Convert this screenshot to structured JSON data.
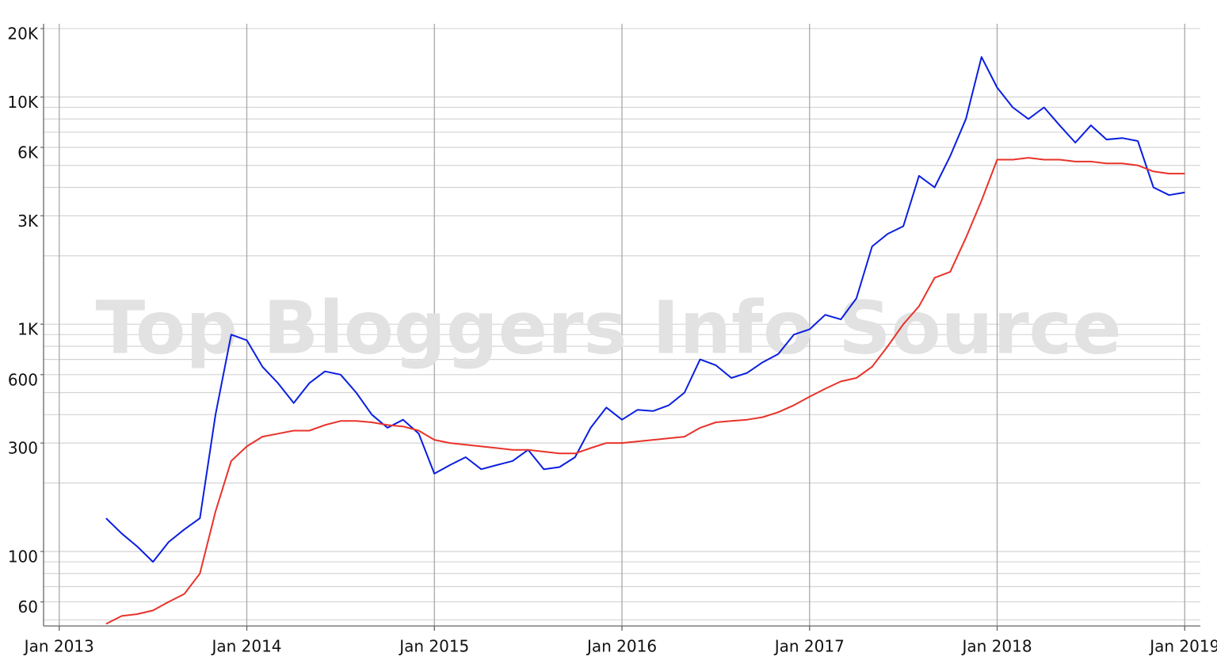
{
  "chart_data": {
    "type": "line",
    "watermark": "Top Bloggers Info Source",
    "log_scale_y": true,
    "grid": true,
    "x": [
      "2013-04",
      "2013-05",
      "2013-06",
      "2013-07",
      "2013-08",
      "2013-09",
      "2013-10",
      "2013-11",
      "2013-12",
      "2014-01",
      "2014-02",
      "2014-03",
      "2014-04",
      "2014-05",
      "2014-06",
      "2014-07",
      "2014-08",
      "2014-09",
      "2014-10",
      "2014-11",
      "2014-12",
      "2015-01",
      "2015-02",
      "2015-03",
      "2015-04",
      "2015-05",
      "2015-06",
      "2015-07",
      "2015-08",
      "2015-09",
      "2015-10",
      "2015-11",
      "2015-12",
      "2016-01",
      "2016-02",
      "2016-03",
      "2016-04",
      "2016-05",
      "2016-06",
      "2016-07",
      "2016-08",
      "2016-09",
      "2016-10",
      "2016-11",
      "2016-12",
      "2017-01",
      "2017-02",
      "2017-03",
      "2017-04",
      "2017-05",
      "2017-06",
      "2017-07",
      "2017-08",
      "2017-09",
      "2017-10",
      "2017-11",
      "2017-12",
      "2018-01",
      "2018-02",
      "2018-03",
      "2018-04",
      "2018-05",
      "2018-06",
      "2018-07",
      "2018-08",
      "2018-09",
      "2018-10",
      "2018-11",
      "2018-12",
      "2019-01"
    ],
    "series": [
      {
        "color": "#0a1fe0",
        "values": [
          140,
          120,
          105,
          90,
          110,
          125,
          140,
          400,
          900,
          850,
          650,
          550,
          450,
          550,
          620,
          600,
          500,
          400,
          350,
          380,
          330,
          220,
          240,
          260,
          230,
          240,
          250,
          280,
          230,
          235,
          260,
          350,
          430,
          380,
          420,
          415,
          440,
          500,
          700,
          660,
          580,
          610,
          680,
          740,
          900,
          950,
          1100,
          1050,
          1300,
          2200,
          2500,
          2700,
          4500,
          4000,
          5500,
          8000,
          15000,
          11000,
          9000,
          8000,
          9000,
          7500,
          6300,
          7500,
          6500,
          6600,
          6400,
          4000,
          3700,
          3800
        ]
      },
      {
        "color": "#e8332a",
        "values": [
          48,
          52,
          53,
          55,
          60,
          65,
          80,
          150,
          250,
          290,
          320,
          330,
          340,
          340,
          360,
          375,
          375,
          370,
          360,
          355,
          340,
          310,
          300,
          295,
          290,
          285,
          280,
          280,
          275,
          270,
          270,
          285,
          300,
          300,
          305,
          310,
          315,
          320,
          350,
          370,
          375,
          380,
          390,
          410,
          440,
          480,
          520,
          560,
          580,
          650,
          800,
          1000,
          1200,
          1600,
          1700,
          2400,
          3500,
          5300,
          5300,
          5400,
          5300,
          5300,
          5200,
          5200,
          5100,
          5100,
          5000,
          4700,
          4600,
          4600
        ]
      }
    ],
    "xlim": [
      "2012-12",
      "2019-02"
    ],
    "xticks": [
      {
        "value": "2013-01",
        "label": "Jan 2013"
      },
      {
        "value": "2014-01",
        "label": "Jan 2014"
      },
      {
        "value": "2015-01",
        "label": "Jan 2015"
      },
      {
        "value": "2016-01",
        "label": "Jan 2016"
      },
      {
        "value": "2017-01",
        "label": "Jan 2017"
      },
      {
        "value": "2018-01",
        "label": "Jan 2018"
      },
      {
        "value": "2019-01",
        "label": "Jan 2019"
      }
    ],
    "ylim": [
      47,
      21000
    ],
    "yticks": [
      {
        "value": 20000,
        "label": "20K"
      },
      {
        "value": 10000,
        "label": "10K"
      },
      {
        "value": 6000,
        "label": "6K"
      },
      {
        "value": 3000,
        "label": "3K"
      },
      {
        "value": 1000,
        "label": "1K"
      },
      600,
      300,
      100,
      60
    ],
    "y_gridlines": [
      50,
      60,
      70,
      80,
      90,
      100,
      200,
      300,
      400,
      500,
      600,
      700,
      800,
      900,
      1000,
      2000,
      3000,
      4000,
      5000,
      6000,
      7000,
      8000,
      9000,
      10000,
      20000
    ]
  }
}
